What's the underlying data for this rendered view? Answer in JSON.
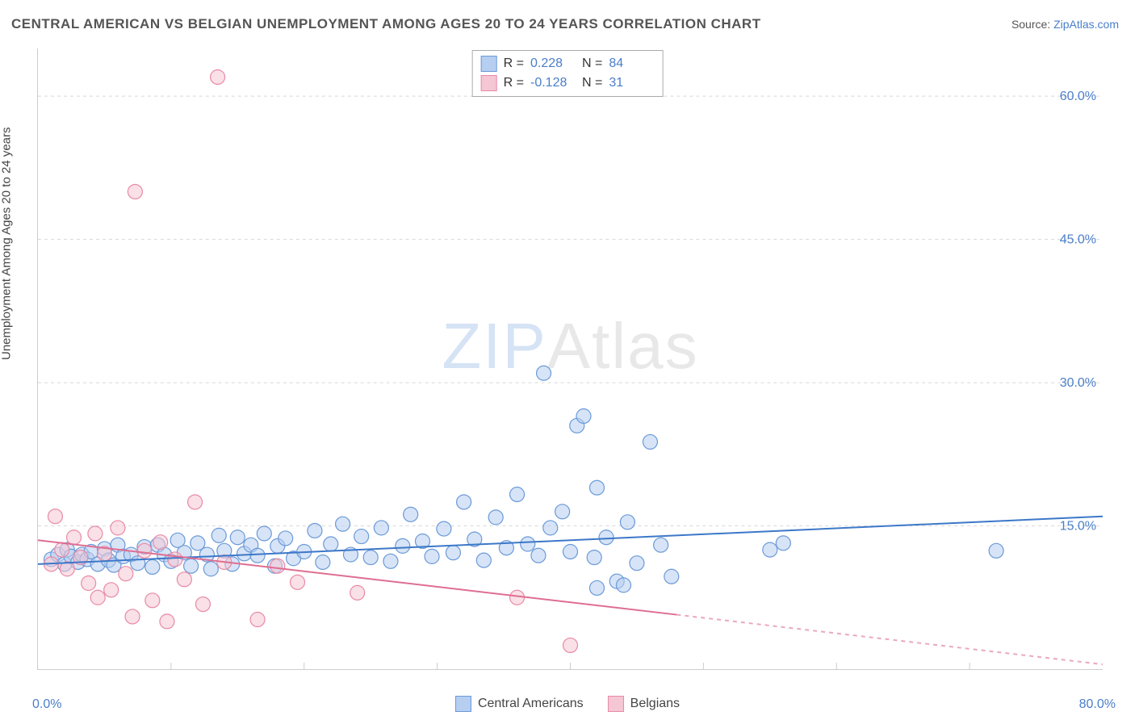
{
  "title": "CENTRAL AMERICAN VS BELGIAN UNEMPLOYMENT AMONG AGES 20 TO 24 YEARS CORRELATION CHART",
  "source_prefix": "Source: ",
  "source_link": "ZipAtlas.com",
  "y_axis_label": "Unemployment Among Ages 20 to 24 years",
  "watermark_a": "ZIP",
  "watermark_b": "Atlas",
  "chart": {
    "type": "scatter",
    "xlim": [
      0,
      80
    ],
    "ylim": [
      0,
      65
    ],
    "x_start_label": "0.0%",
    "x_end_label": "80.0%",
    "y_ticks": [
      15.0,
      30.0,
      45.0,
      60.0
    ],
    "y_tick_labels": [
      "15.0%",
      "30.0%",
      "45.0%",
      "60.0%"
    ],
    "x_minor_ticks": [
      10,
      20,
      30,
      40,
      50,
      60,
      70
    ],
    "grid_color": "#d8d8d8",
    "grid_dash": "4,4",
    "background_color": "#ffffff",
    "marker_radius": 9,
    "marker_opacity": 0.55,
    "line_width": 2,
    "marker_stroke_width": 1.2,
    "series": [
      {
        "name": "Central Americans",
        "fill": "#b6cef0",
        "stroke": "#6a9ad8",
        "line_color": "#3c78c8",
        "r_value": "0.228",
        "n_value": "84",
        "trend": {
          "x1": 0,
          "y1": 11.0,
          "x2": 80,
          "y2": 16.0,
          "solid_until_x": 80
        },
        "points": [
          [
            1,
            11.5
          ],
          [
            1.5,
            12
          ],
          [
            2,
            11
          ],
          [
            2.2,
            12.5
          ],
          [
            2.5,
            11.8
          ],
          [
            3,
            11.2
          ],
          [
            3.3,
            12
          ],
          [
            3.7,
            11.5
          ],
          [
            4,
            12.3
          ],
          [
            4.5,
            11
          ],
          [
            5,
            12.6
          ],
          [
            5.3,
            11.4
          ],
          [
            5.7,
            10.9
          ],
          [
            6,
            13
          ],
          [
            6.4,
            11.8
          ],
          [
            7,
            12
          ],
          [
            7.5,
            11.1
          ],
          [
            8,
            12.8
          ],
          [
            8.6,
            10.7
          ],
          [
            9,
            13
          ],
          [
            9.5,
            12
          ],
          [
            10,
            11.3
          ],
          [
            10.5,
            13.5
          ],
          [
            11,
            12.2
          ],
          [
            11.5,
            10.8
          ],
          [
            12,
            13.2
          ],
          [
            12.7,
            12
          ],
          [
            13,
            10.5
          ],
          [
            13.6,
            14
          ],
          [
            14,
            12.4
          ],
          [
            14.6,
            11
          ],
          [
            15,
            13.8
          ],
          [
            15.5,
            12.1
          ],
          [
            16,
            13
          ],
          [
            16.5,
            11.9
          ],
          [
            17,
            14.2
          ],
          [
            17.8,
            10.8
          ],
          [
            18,
            12.9
          ],
          [
            18.6,
            13.7
          ],
          [
            19.2,
            11.6
          ],
          [
            20,
            12.3
          ],
          [
            20.8,
            14.5
          ],
          [
            21.4,
            11.2
          ],
          [
            22,
            13.1
          ],
          [
            22.9,
            15.2
          ],
          [
            23.5,
            12
          ],
          [
            24.3,
            13.9
          ],
          [
            25,
            11.7
          ],
          [
            25.8,
            14.8
          ],
          [
            26.5,
            11.3
          ],
          [
            27.4,
            12.9
          ],
          [
            28,
            16.2
          ],
          [
            28.9,
            13.4
          ],
          [
            29.6,
            11.8
          ],
          [
            30.5,
            14.7
          ],
          [
            31.2,
            12.2
          ],
          [
            32,
            17.5
          ],
          [
            32.8,
            13.6
          ],
          [
            33.5,
            11.4
          ],
          [
            34.4,
            15.9
          ],
          [
            35.2,
            12.7
          ],
          [
            36,
            18.3
          ],
          [
            36.8,
            13.1
          ],
          [
            37.6,
            11.9
          ],
          [
            38,
            31.0
          ],
          [
            38.5,
            14.8
          ],
          [
            39.4,
            16.5
          ],
          [
            40,
            12.3
          ],
          [
            40.5,
            25.5
          ],
          [
            41,
            26.5
          ],
          [
            41.8,
            11.7
          ],
          [
            42,
            19
          ],
          [
            42.7,
            13.8
          ],
          [
            43.5,
            9.2
          ],
          [
            44.3,
            15.4
          ],
          [
            45,
            11.1
          ],
          [
            46,
            23.8
          ],
          [
            46.8,
            13
          ],
          [
            47.6,
            9.7
          ],
          [
            55,
            12.5
          ],
          [
            56,
            13.2
          ],
          [
            72,
            12.4
          ],
          [
            42,
            8.5
          ],
          [
            44,
            8.8
          ]
        ]
      },
      {
        "name": "Belgians",
        "fill": "#f5c6d3",
        "stroke": "#e88aa6",
        "line_color": "#de6e92",
        "r_value": "-0.128",
        "n_value": "31",
        "trend": {
          "x1": 0,
          "y1": 13.5,
          "x2": 80,
          "y2": 0.5,
          "solid_until_x": 48
        },
        "points": [
          [
            1,
            11
          ],
          [
            1.3,
            16
          ],
          [
            1.8,
            12.5
          ],
          [
            2.2,
            10.5
          ],
          [
            2.7,
            13.8
          ],
          [
            3.2,
            11.7
          ],
          [
            3.8,
            9
          ],
          [
            4.3,
            14.2
          ],
          [
            4.5,
            7.5
          ],
          [
            5,
            12.1
          ],
          [
            5.5,
            8.3
          ],
          [
            6,
            14.8
          ],
          [
            6.6,
            10
          ],
          [
            7.1,
            5.5
          ],
          [
            7.3,
            50
          ],
          [
            8,
            12.4
          ],
          [
            8.6,
            7.2
          ],
          [
            9.2,
            13.3
          ],
          [
            9.7,
            5
          ],
          [
            10.3,
            11.5
          ],
          [
            11,
            9.4
          ],
          [
            11.8,
            17.5
          ],
          [
            12.4,
            6.8
          ],
          [
            13.5,
            62
          ],
          [
            14,
            11.2
          ],
          [
            16.5,
            5.2
          ],
          [
            18,
            10.8
          ],
          [
            19.5,
            9.1
          ],
          [
            24,
            8
          ],
          [
            36,
            7.5
          ],
          [
            40,
            2.5
          ]
        ]
      }
    ]
  },
  "legend_top": {
    "r_label": "R =",
    "n_label": "N ="
  },
  "legend_bottom_series": [
    "Central Americans",
    "Belgians"
  ]
}
